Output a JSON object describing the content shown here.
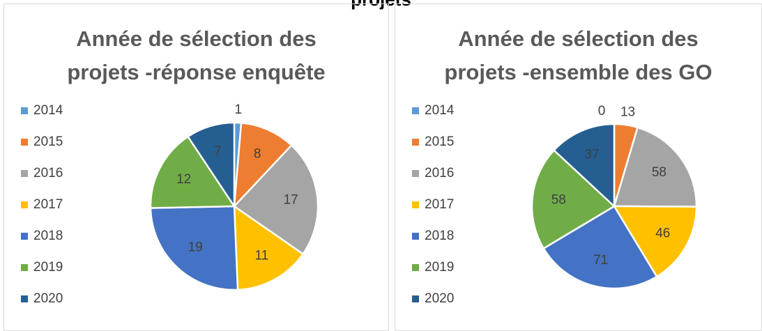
{
  "header": "projets",
  "chart_data": [
    {
      "type": "pie",
      "title": "Année de sélection des projets -réponse enquête",
      "categories": [
        "2014",
        "2015",
        "2016",
        "2017",
        "2018",
        "2019",
        "2020"
      ],
      "values": [
        1,
        8,
        17,
        11,
        19,
        12,
        7
      ],
      "colors": [
        "#5b9bd5",
        "#ed7d31",
        "#a5a5a5",
        "#ffc000",
        "#4472c4",
        "#70ad47",
        "#255e91"
      ],
      "legend": "left"
    },
    {
      "type": "pie",
      "title": "Année de sélection des projets -ensemble des GO",
      "categories": [
        "2014",
        "2015",
        "2016",
        "2017",
        "2018",
        "2019",
        "2020"
      ],
      "values": [
        0,
        13,
        58,
        46,
        71,
        58,
        37
      ],
      "colors": [
        "#5b9bd5",
        "#ed7d31",
        "#a5a5a5",
        "#ffc000",
        "#4472c4",
        "#70ad47",
        "#255e91"
      ],
      "legend": "left"
    }
  ]
}
